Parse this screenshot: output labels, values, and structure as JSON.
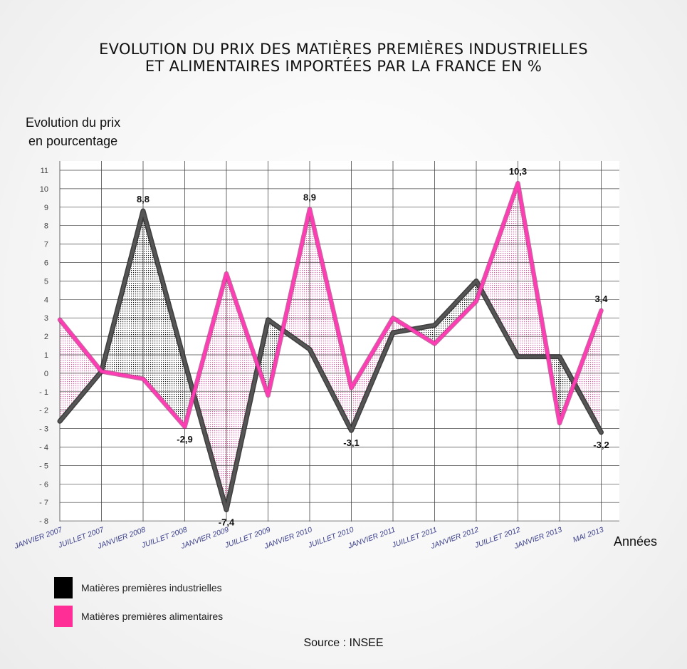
{
  "title_line1": "EVOLUTION DU PRIX DES MATIÈRES PREMIÈRES INDUSTRIELLES",
  "title_line2": "ET ALIMENTAIRES IMPORTÉES PAR LA FRANCE EN %",
  "ylabel_line1": "Evolution du prix",
  "ylabel_line2": "en pourcentage",
  "source": "Source : INSEE",
  "colors": {
    "industrial": "#555555",
    "industrial_swatch": "#000000",
    "food": "#ff3cb4",
    "food_swatch": "#ff2d96",
    "grid": "#444444",
    "axis_text": "#444444",
    "x_tick_text": "#3a3f8c"
  },
  "chart_data": {
    "type": "line",
    "title": "EVOLUTION DU PRIX DES MATIÈRES PREMIÈRES INDUSTRIELLES ET ALIMENTAIRES IMPORTÉES PAR LA FRANCE EN %",
    "xlabel": "Années",
    "ylabel": "Evolution du prix en pourcentage",
    "ylim": [
      -8,
      11
    ],
    "yticks": [
      -8,
      -7,
      -6,
      -5,
      -4,
      -3,
      -2,
      -1,
      0,
      1,
      2,
      3,
      4,
      5,
      6,
      7,
      8,
      9,
      10,
      11
    ],
    "grid": true,
    "categories": [
      "JANVIER 2007",
      "JUILLET 2007",
      "JANVIER 2008",
      "JUILLET 2008",
      "JANVIER 2009",
      "JUILLET 2009",
      "JANVIER 2010",
      "JUILLET 2010",
      "JANVIER 2011",
      "JUILLET 2011",
      "JANVIER 2012",
      "JUILLET 2012",
      "JANVIER 2013",
      "MAI 2013"
    ],
    "series": [
      {
        "name": "Matières premières industrielles",
        "values": [
          -2.6,
          0.1,
          8.8,
          0.6,
          -7.4,
          2.9,
          1.3,
          -3.1,
          2.2,
          2.6,
          5.0,
          0.9,
          0.9,
          -3.2
        ]
      },
      {
        "name": "Matières premières alimentaires",
        "values": [
          2.9,
          0.1,
          -0.3,
          -2.9,
          5.4,
          -1.2,
          8.9,
          -0.8,
          3.0,
          1.6,
          3.9,
          10.3,
          -2.7,
          3.4
        ]
      }
    ],
    "data_labels": [
      {
        "text": "8,8",
        "series": 0,
        "index": 2,
        "position": "above"
      },
      {
        "text": "-7,4",
        "series": 0,
        "index": 4,
        "position": "below"
      },
      {
        "text": "-3,1",
        "series": 0,
        "index": 7,
        "position": "below"
      },
      {
        "text": "-3,2",
        "series": 0,
        "index": 13,
        "position": "below"
      },
      {
        "text": "-2,9",
        "series": 1,
        "index": 3,
        "position": "below"
      },
      {
        "text": "8,9",
        "series": 1,
        "index": 6,
        "position": "above"
      },
      {
        "text": "10,3",
        "series": 1,
        "index": 11,
        "position": "above"
      },
      {
        "text": "3,4",
        "series": 1,
        "index": 13,
        "position": "above"
      }
    ]
  }
}
